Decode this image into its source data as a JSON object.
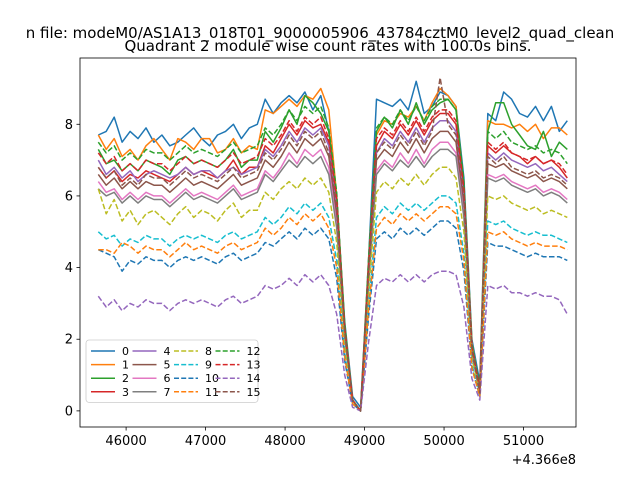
{
  "chart_data": {
    "type": "line",
    "figure_title": "n file: modeM0/AS1A13_018T01_9000005906_43784cztM0_level2_quad_clean",
    "title": "Quadrant 2 module wise count rates with 100.0s bins.",
    "xlabel": "",
    "ylabel": "",
    "x_offset_label": "+4.366e8",
    "xlim": [
      45420,
      51660
    ],
    "ylim": [
      -0.45,
      9.85
    ],
    "x_ticks": [
      46000,
      47000,
      48000,
      49000,
      50000,
      51000
    ],
    "x_tick_labels": [
      "46000",
      "47000",
      "48000",
      "49000",
      "50000",
      "51000"
    ],
    "y_ticks": [
      0,
      2,
      4,
      6,
      8
    ],
    "y_tick_labels": [
      "0",
      "2",
      "4",
      "6",
      "8"
    ],
    "grid": false,
    "legend_placement": "lower-left",
    "legend_columns": 4,
    "x": [
      45650,
      45750,
      45850,
      45950,
      46050,
      46150,
      46250,
      46350,
      46450,
      46550,
      46650,
      46750,
      46850,
      46950,
      47050,
      47150,
      47250,
      47350,
      47450,
      47550,
      47650,
      47750,
      47850,
      47950,
      48050,
      48150,
      48250,
      48350,
      48450,
      48550,
      48650,
      48750,
      48850,
      48950,
      49050,
      49150,
      49250,
      49350,
      49450,
      49550,
      49650,
      49750,
      49850,
      49950,
      50050,
      50150,
      50250,
      50350,
      50450,
      50550,
      50650,
      50750,
      50850,
      50950,
      51050,
      51150,
      51250,
      51350,
      51450,
      51550
    ],
    "series": [
      {
        "name": "0",
        "color": "#1f77b4",
        "style": "solid",
        "values": [
          7.7,
          7.8,
          8.2,
          7.5,
          7.8,
          7.6,
          7.9,
          7.5,
          7.7,
          7.4,
          7.5,
          7.7,
          7.9,
          7.6,
          7.4,
          7.7,
          7.8,
          8.0,
          7.6,
          7.9,
          8.0,
          8.7,
          8.3,
          8.6,
          8.8,
          8.6,
          8.9,
          8.4,
          8.8,
          7.8,
          6.0,
          2.5,
          0.4,
          0.1,
          4.2,
          8.7,
          8.6,
          8.5,
          8.7,
          8.4,
          9.2,
          8.3,
          8.5,
          8.9,
          8.8,
          8.5,
          6.5,
          2.0,
          0.8,
          8.3,
          8.1,
          8.9,
          8.7,
          8.3,
          8.2,
          8.5,
          8.1,
          8.5,
          7.8,
          8.1
        ]
      },
      {
        "name": "1",
        "color": "#ff7f0e",
        "style": "solid",
        "values": [
          7.7,
          7.3,
          7.6,
          7.1,
          7.3,
          7.0,
          7.4,
          7.6,
          7.3,
          7.0,
          7.6,
          7.5,
          7.3,
          7.6,
          7.6,
          7.2,
          7.3,
          7.6,
          7.2,
          7.4,
          7.3,
          8.4,
          8.3,
          8.5,
          8.7,
          8.5,
          8.8,
          8.7,
          9.0,
          8.4,
          6.0,
          2.4,
          0.3,
          0.0,
          4.1,
          7.7,
          8.1,
          8.0,
          8.3,
          8.2,
          8.5,
          8.1,
          8.6,
          9.0,
          8.8,
          8.5,
          6.2,
          1.9,
          0.6,
          8.1,
          8.0,
          8.0,
          7.9,
          8.0,
          7.8,
          8.0,
          7.6,
          7.9,
          7.9,
          7.7
        ]
      },
      {
        "name": "2",
        "color": "#2ca02c",
        "style": "solid",
        "values": [
          7.3,
          6.9,
          7.0,
          6.7,
          6.9,
          6.7,
          7.0,
          6.9,
          6.8,
          6.6,
          7.0,
          7.1,
          6.9,
          7.0,
          6.9,
          6.8,
          7.0,
          7.3,
          6.8,
          7.0,
          7.0,
          7.8,
          7.5,
          7.9,
          8.4,
          8.0,
          8.8,
          8.6,
          8.3,
          7.8,
          5.9,
          2.4,
          0.3,
          0.0,
          4.0,
          7.8,
          8.2,
          7.9,
          8.4,
          8.0,
          8.6,
          8.0,
          8.4,
          8.6,
          8.7,
          8.4,
          6.3,
          1.8,
          0.7,
          7.8,
          8.6,
          8.6,
          8.0,
          7.7,
          7.4,
          7.3,
          7.8,
          7.1,
          7.5,
          7.3
        ]
      },
      {
        "name": "3",
        "color": "#d62728",
        "style": "solid",
        "values": [
          6.8,
          6.5,
          6.7,
          6.4,
          6.6,
          6.5,
          6.7,
          6.6,
          6.5,
          6.4,
          6.6,
          6.8,
          6.6,
          6.7,
          6.6,
          6.5,
          6.7,
          7.0,
          6.6,
          6.8,
          6.8,
          7.4,
          7.2,
          7.6,
          8.0,
          7.7,
          8.1,
          7.9,
          8.0,
          7.5,
          5.7,
          2.3,
          0.3,
          0.0,
          3.9,
          7.4,
          7.8,
          7.6,
          8.0,
          7.7,
          8.1,
          7.7,
          8.1,
          8.3,
          8.3,
          8.0,
          6.0,
          1.7,
          0.6,
          7.4,
          7.2,
          7.4,
          7.2,
          7.1,
          6.9,
          7.1,
          6.9,
          7.0,
          6.8,
          6.5
        ]
      },
      {
        "name": "4",
        "color": "#9467bd",
        "style": "solid",
        "values": [
          7.0,
          6.6,
          6.8,
          6.5,
          6.7,
          6.4,
          6.6,
          6.7,
          6.6,
          6.5,
          6.6,
          6.8,
          6.6,
          6.7,
          6.7,
          6.5,
          6.7,
          6.8,
          6.6,
          6.7,
          6.8,
          7.3,
          7.1,
          7.4,
          7.8,
          7.5,
          7.9,
          7.7,
          7.9,
          7.4,
          5.6,
          2.2,
          0.3,
          0.0,
          3.8,
          7.2,
          7.6,
          7.4,
          7.8,
          7.5,
          7.9,
          7.5,
          7.9,
          8.1,
          8.1,
          7.8,
          5.9,
          1.7,
          0.6,
          7.2,
          7.0,
          7.2,
          7.0,
          6.9,
          6.8,
          6.9,
          6.7,
          6.8,
          6.6,
          6.4
        ]
      },
      {
        "name": "5",
        "color": "#8c564b",
        "style": "solid",
        "values": [
          6.6,
          6.3,
          6.5,
          6.2,
          6.4,
          6.2,
          6.4,
          6.3,
          6.3,
          6.1,
          6.3,
          6.5,
          6.3,
          6.4,
          6.3,
          6.2,
          6.4,
          6.6,
          6.3,
          6.4,
          6.5,
          7.0,
          6.8,
          7.1,
          7.5,
          7.2,
          7.6,
          7.4,
          7.6,
          7.1,
          5.4,
          2.1,
          0.3,
          0.0,
          3.7,
          7.0,
          7.3,
          7.1,
          7.5,
          7.2,
          7.6,
          7.2,
          7.6,
          7.8,
          7.8,
          7.5,
          5.7,
          1.6,
          0.6,
          6.9,
          6.8,
          6.9,
          6.7,
          6.6,
          6.5,
          6.6,
          6.4,
          6.5,
          6.4,
          6.2
        ]
      },
      {
        "name": "6",
        "color": "#e377c2",
        "style": "solid",
        "values": [
          6.4,
          6.1,
          6.2,
          5.9,
          6.1,
          5.9,
          6.1,
          6.0,
          6.0,
          5.8,
          6.0,
          6.2,
          6.0,
          6.1,
          6.0,
          5.9,
          6.1,
          6.3,
          6.0,
          6.1,
          6.2,
          6.7,
          6.5,
          6.8,
          7.2,
          6.9,
          7.3,
          7.1,
          7.3,
          6.8,
          5.2,
          2.0,
          0.3,
          0.0,
          3.6,
          6.7,
          7.0,
          6.8,
          7.2,
          6.9,
          7.3,
          6.9,
          7.3,
          7.5,
          7.5,
          7.2,
          5.5,
          1.6,
          0.5,
          6.6,
          6.5,
          6.6,
          6.4,
          6.3,
          6.2,
          6.3,
          6.1,
          6.2,
          6.1,
          5.9
        ]
      },
      {
        "name": "7",
        "color": "#7f7f7f",
        "style": "solid",
        "values": [
          6.2,
          6.0,
          6.1,
          5.8,
          6.0,
          5.8,
          6.0,
          5.9,
          5.9,
          5.7,
          5.9,
          6.1,
          5.9,
          6.0,
          5.9,
          5.8,
          6.0,
          6.2,
          5.9,
          6.0,
          6.1,
          6.6,
          6.4,
          6.7,
          7.0,
          6.8,
          7.1,
          6.9,
          7.1,
          6.6,
          5.1,
          2.0,
          0.3,
          0.0,
          3.5,
          6.6,
          6.9,
          6.7,
          7.0,
          6.8,
          7.1,
          6.8,
          7.1,
          7.3,
          7.3,
          7.1,
          5.4,
          1.6,
          0.5,
          6.5,
          6.4,
          6.5,
          6.3,
          6.2,
          6.1,
          6.2,
          6.0,
          6.1,
          6.0,
          5.8
        ]
      },
      {
        "name": "8",
        "color": "#bcbd22",
        "style": "dashed",
        "values": [
          6.2,
          5.5,
          5.9,
          5.3,
          5.6,
          5.2,
          5.5,
          5.6,
          5.4,
          5.2,
          5.5,
          5.7,
          5.4,
          5.6,
          5.5,
          5.3,
          5.6,
          5.8,
          5.4,
          5.6,
          5.6,
          6.1,
          5.9,
          6.2,
          6.4,
          6.2,
          6.5,
          6.3,
          6.5,
          6.1,
          4.7,
          1.8,
          0.3,
          0.0,
          3.3,
          6.1,
          6.4,
          6.2,
          6.5,
          6.3,
          6.6,
          6.3,
          6.6,
          6.8,
          6.8,
          6.5,
          5.0,
          1.5,
          0.5,
          6.0,
          5.9,
          6.0,
          5.8,
          5.7,
          5.6,
          5.7,
          5.5,
          5.6,
          5.5,
          5.4
        ]
      },
      {
        "name": "9",
        "color": "#17becf",
        "style": "dashed",
        "values": [
          5.0,
          4.8,
          4.9,
          4.6,
          4.8,
          4.7,
          4.9,
          4.8,
          4.8,
          4.6,
          4.8,
          4.9,
          4.8,
          4.9,
          4.8,
          4.7,
          4.9,
          5.0,
          4.8,
          4.9,
          5.0,
          5.4,
          5.2,
          5.4,
          5.7,
          5.5,
          5.8,
          5.6,
          5.8,
          5.4,
          4.2,
          1.6,
          0.2,
          0.0,
          2.9,
          5.4,
          5.7,
          5.5,
          5.8,
          5.6,
          5.8,
          5.6,
          5.8,
          6.0,
          6.0,
          5.8,
          4.4,
          1.3,
          0.4,
          5.3,
          5.2,
          5.3,
          5.1,
          5.0,
          4.9,
          5.0,
          4.9,
          4.9,
          4.8,
          4.7
        ]
      },
      {
        "name": "10",
        "color": "#1f77b4",
        "style": "dashed",
        "values": [
          4.5,
          4.4,
          4.3,
          3.9,
          4.2,
          4.1,
          4.3,
          4.2,
          4.2,
          4.0,
          4.2,
          4.3,
          4.2,
          4.3,
          4.2,
          4.1,
          4.3,
          4.4,
          4.2,
          4.3,
          4.4,
          4.7,
          4.6,
          4.8,
          5.0,
          4.8,
          5.1,
          4.9,
          5.1,
          4.8,
          3.7,
          1.4,
          0.2,
          0.0,
          2.6,
          4.8,
          5.0,
          4.8,
          5.1,
          4.9,
          5.1,
          4.9,
          5.1,
          5.3,
          5.3,
          5.1,
          3.9,
          1.2,
          0.4,
          4.7,
          4.6,
          4.6,
          4.5,
          4.4,
          4.3,
          4.4,
          4.3,
          4.3,
          4.3,
          4.2
        ]
      },
      {
        "name": "11",
        "color": "#ff7f0e",
        "style": "dashed",
        "values": [
          4.5,
          4.5,
          4.4,
          4.7,
          4.6,
          4.4,
          4.6,
          4.5,
          4.5,
          4.3,
          4.5,
          4.7,
          4.5,
          4.6,
          4.5,
          4.4,
          4.6,
          4.7,
          4.5,
          4.6,
          4.7,
          5.1,
          4.9,
          5.1,
          5.4,
          5.2,
          5.5,
          5.3,
          5.5,
          5.1,
          4.0,
          1.5,
          0.2,
          0.0,
          2.8,
          5.1,
          5.4,
          5.2,
          5.5,
          5.3,
          5.5,
          5.3,
          5.5,
          5.7,
          5.7,
          5.5,
          4.2,
          1.2,
          0.4,
          5.0,
          4.9,
          5.0,
          4.8,
          4.7,
          4.6,
          4.7,
          4.6,
          4.6,
          4.6,
          4.5
        ]
      },
      {
        "name": "12",
        "color": "#2ca02c",
        "style": "dashed",
        "values": [
          7.5,
          7.2,
          7.4,
          7.0,
          7.2,
          7.0,
          7.3,
          7.2,
          7.2,
          7.0,
          7.2,
          7.4,
          7.2,
          7.3,
          7.2,
          7.1,
          7.3,
          7.5,
          7.2,
          7.3,
          7.4,
          7.9,
          7.7,
          8.0,
          8.4,
          8.1,
          8.5,
          8.3,
          8.5,
          7.9,
          6.1,
          2.4,
          0.3,
          0.0,
          4.2,
          7.9,
          8.2,
          8.0,
          8.4,
          8.1,
          8.5,
          8.1,
          8.5,
          8.7,
          8.7,
          8.4,
          6.4,
          1.9,
          0.6,
          7.8,
          7.6,
          7.8,
          7.5,
          7.4,
          7.3,
          7.4,
          7.2,
          7.3,
          7.2,
          6.9
        ]
      },
      {
        "name": "13",
        "color": "#d62728",
        "style": "dashed",
        "values": [
          7.2,
          6.9,
          7.1,
          6.7,
          6.9,
          6.7,
          7.0,
          6.9,
          6.9,
          6.7,
          6.9,
          7.1,
          6.9,
          7.0,
          6.9,
          6.8,
          7.0,
          7.2,
          6.9,
          7.0,
          7.1,
          7.6,
          7.4,
          7.7,
          8.1,
          7.8,
          8.2,
          8.0,
          8.2,
          7.6,
          5.9,
          2.3,
          0.3,
          0.0,
          4.0,
          7.6,
          7.9,
          7.7,
          8.1,
          7.8,
          8.2,
          7.8,
          8.2,
          8.4,
          8.4,
          8.1,
          6.2,
          1.8,
          0.6,
          7.5,
          7.3,
          7.5,
          7.2,
          7.1,
          7.0,
          7.1,
          6.9,
          7.0,
          6.9,
          6.6
        ]
      },
      {
        "name": "14",
        "color": "#9467bd",
        "style": "dashed",
        "values": [
          3.2,
          2.9,
          3.1,
          2.8,
          3.0,
          2.9,
          3.1,
          3.0,
          3.0,
          2.8,
          3.0,
          3.1,
          3.0,
          3.1,
          3.0,
          2.9,
          3.1,
          3.2,
          3.0,
          3.1,
          3.2,
          3.5,
          3.4,
          3.5,
          3.7,
          3.5,
          3.8,
          3.6,
          3.8,
          3.5,
          2.7,
          1.0,
          0.1,
          0.0,
          1.9,
          3.5,
          3.7,
          3.6,
          3.8,
          3.6,
          3.8,
          3.6,
          3.8,
          3.9,
          3.9,
          3.8,
          2.9,
          0.9,
          0.3,
          3.5,
          3.4,
          3.5,
          3.3,
          3.3,
          3.2,
          3.3,
          3.2,
          3.2,
          3.1,
          2.7
        ]
      },
      {
        "name": "15",
        "color": "#8c564b",
        "style": "dashed",
        "values": [
          6.8,
          6.5,
          6.7,
          6.3,
          6.5,
          6.3,
          6.6,
          6.5,
          6.5,
          6.3,
          6.5,
          6.7,
          6.5,
          6.6,
          6.5,
          6.4,
          6.6,
          6.8,
          6.5,
          6.6,
          6.7,
          7.2,
          7.0,
          7.3,
          7.7,
          7.4,
          7.8,
          7.6,
          7.8,
          7.2,
          5.6,
          2.2,
          0.3,
          0.0,
          3.8,
          7.2,
          7.5,
          7.3,
          7.7,
          7.4,
          7.8,
          7.4,
          7.8,
          9.3,
          8.0,
          7.7,
          5.9,
          1.7,
          0.5,
          7.1,
          6.9,
          7.1,
          6.8,
          6.7,
          6.6,
          6.7,
          6.5,
          6.6,
          6.5,
          6.3
        ]
      }
    ]
  }
}
